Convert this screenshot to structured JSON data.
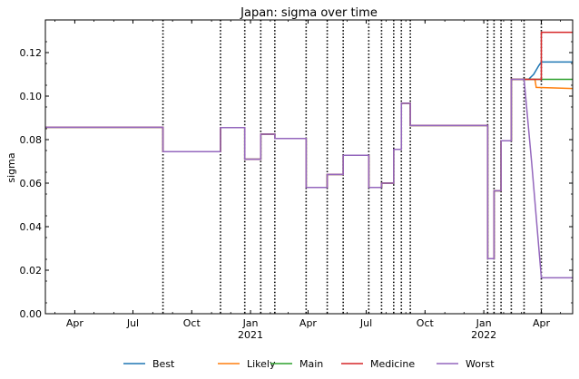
{
  "chart_data": {
    "type": "line",
    "title": "Japan: sigma over time",
    "xlabel": "",
    "ylabel": "sigma",
    "xlim": [
      "2020-02-15",
      "2022-05-20"
    ],
    "ylim": [
      0,
      0.135
    ],
    "grid": false,
    "legend_position": "bottom",
    "y_ticks": [
      0.0,
      0.02,
      0.04,
      0.06,
      0.08,
      0.1,
      0.12
    ],
    "y_tick_labels": [
      "0.00",
      "0.02",
      "0.04",
      "0.06",
      "0.08",
      "0.10",
      "0.12"
    ],
    "x_ticks": [
      {
        "date": "2020-04-01",
        "label": "Apr",
        "sub": ""
      },
      {
        "date": "2020-07-01",
        "label": "Jul",
        "sub": ""
      },
      {
        "date": "2020-10-01",
        "label": "Oct",
        "sub": ""
      },
      {
        "date": "2021-01-01",
        "label": "Jan",
        "sub": "2021"
      },
      {
        "date": "2021-04-01",
        "label": "Apr",
        "sub": ""
      },
      {
        "date": "2021-07-01",
        "label": "Jul",
        "sub": ""
      },
      {
        "date": "2021-10-01",
        "label": "Oct",
        "sub": ""
      },
      {
        "date": "2022-01-01",
        "label": "Jan",
        "sub": "2022"
      },
      {
        "date": "2022-04-01",
        "label": "Apr",
        "sub": ""
      }
    ],
    "change_dates": [
      "2020-08-17",
      "2020-11-15",
      "2020-12-23",
      "2021-01-17",
      "2021-02-08",
      "2021-03-29",
      "2021-05-01",
      "2021-05-26",
      "2021-07-05",
      "2021-07-25",
      "2021-08-13",
      "2021-08-25",
      "2021-09-08",
      "2022-01-07",
      "2022-01-17",
      "2022-01-28",
      "2022-02-13",
      "2022-03-05",
      "2022-04-01"
    ],
    "common": [
      [
        "2020-02-15",
        0.0857
      ],
      [
        "2020-08-17",
        0.0857
      ],
      [
        "2020-08-17",
        0.0745
      ],
      [
        "2020-11-15",
        0.0745
      ],
      [
        "2020-11-15",
        0.0855
      ],
      [
        "2020-12-23",
        0.0855
      ],
      [
        "2020-12-23",
        0.071
      ],
      [
        "2021-01-17",
        0.071
      ],
      [
        "2021-01-17",
        0.0825
      ],
      [
        "2021-02-08",
        0.0825
      ],
      [
        "2021-02-08",
        0.0805
      ],
      [
        "2021-03-29",
        0.0805
      ],
      [
        "2021-03-29",
        0.058
      ],
      [
        "2021-05-01",
        0.058
      ],
      [
        "2021-05-01",
        0.064
      ],
      [
        "2021-05-26",
        0.064
      ],
      [
        "2021-05-26",
        0.0728
      ],
      [
        "2021-07-05",
        0.0728
      ],
      [
        "2021-07-05",
        0.058
      ],
      [
        "2021-07-25",
        0.058
      ],
      [
        "2021-07-25",
        0.06
      ],
      [
        "2021-08-13",
        0.06
      ],
      [
        "2021-08-13",
        0.0755
      ],
      [
        "2021-08-25",
        0.0755
      ],
      [
        "2021-08-25",
        0.0967
      ],
      [
        "2021-09-08",
        0.0967
      ],
      [
        "2021-09-08",
        0.0865
      ],
      [
        "2022-01-07",
        0.0865
      ],
      [
        "2022-01-07",
        0.0253
      ],
      [
        "2022-01-17",
        0.0253
      ],
      [
        "2022-01-17",
        0.0565
      ],
      [
        "2022-01-28",
        0.0565
      ],
      [
        "2022-01-28",
        0.0795
      ],
      [
        "2022-02-13",
        0.0795
      ],
      [
        "2022-02-13",
        0.1077
      ],
      [
        "2022-03-05",
        0.1077
      ]
    ],
    "series": [
      {
        "name": "Best",
        "color": "#1f77b4",
        "values": [
          [
            "2022-03-05",
            0.1077
          ],
          [
            "2022-03-12",
            0.1077
          ],
          [
            "2022-03-20",
            0.11
          ],
          [
            "2022-03-28",
            0.114
          ],
          [
            "2022-04-01",
            0.1157
          ],
          [
            "2022-05-20",
            0.1157
          ]
        ]
      },
      {
        "name": "Likely",
        "color": "#ff7f0e",
        "values": [
          [
            "2022-03-05",
            0.1077
          ],
          [
            "2022-03-22",
            0.1077
          ],
          [
            "2022-03-24",
            0.104
          ],
          [
            "2022-05-20",
            0.1035
          ]
        ]
      },
      {
        "name": "Main",
        "color": "#2ca02c",
        "values": [
          [
            "2022-03-05",
            0.1077
          ],
          [
            "2022-05-20",
            0.1077
          ]
        ]
      },
      {
        "name": "Medicine",
        "color": "#d62728",
        "values": [
          [
            "2022-03-05",
            0.1077
          ],
          [
            "2022-04-01",
            0.1077
          ],
          [
            "2022-04-01",
            0.1293
          ],
          [
            "2022-05-20",
            0.1293
          ]
        ]
      },
      {
        "name": "Worst",
        "color": "#9467bd",
        "values": [
          [
            "2022-03-05",
            0.1077
          ],
          [
            "2022-03-17",
            0.069
          ],
          [
            "2022-04-01",
            0.0165
          ],
          [
            "2022-05-20",
            0.0165
          ]
        ]
      }
    ]
  }
}
